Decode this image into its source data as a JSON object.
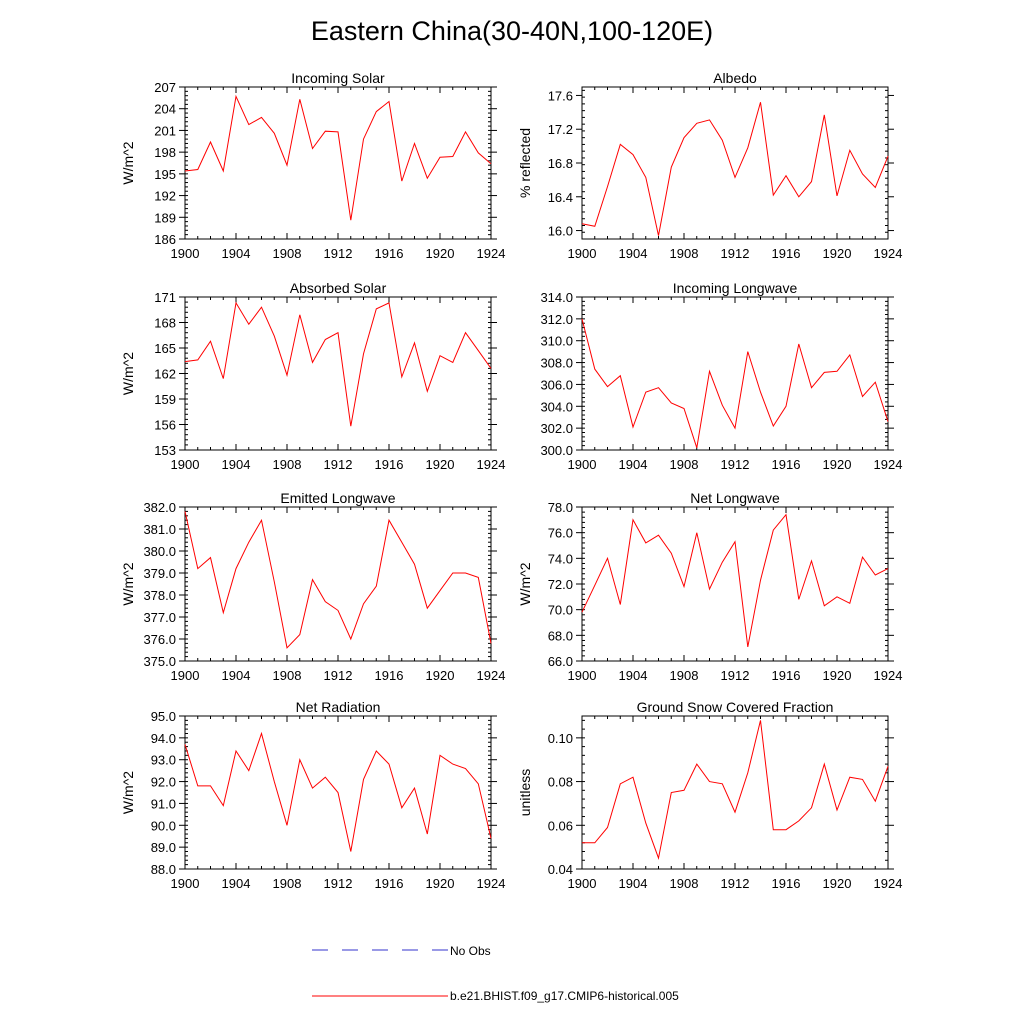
{
  "page_title": "Eastern China(30-40N,100-120E)",
  "chart_data": [
    {
      "type": "line",
      "title": "Incoming Solar",
      "ylabel": "W/m^2",
      "xlabel": "",
      "xlim": [
        1900,
        1924
      ],
      "ylim": [
        186,
        207
      ],
      "xticks": [
        1900,
        1904,
        1908,
        1912,
        1916,
        1920,
        1924
      ],
      "yticks": [
        186,
        189,
        192,
        195,
        198,
        201,
        204,
        207
      ],
      "ytick_labels": [
        "186",
        "189",
        "192",
        "195",
        "198",
        "201",
        "204",
        "207"
      ],
      "color": "#ff0000",
      "x": [
        1900,
        1901,
        1902,
        1903,
        1904,
        1905,
        1906,
        1907,
        1908,
        1909,
        1910,
        1911,
        1912,
        1913,
        1914,
        1915,
        1916,
        1917,
        1918,
        1919,
        1920,
        1921,
        1922,
        1923,
        1924
      ],
      "values": [
        195.4,
        195.6,
        199.4,
        195.4,
        205.7,
        201.8,
        202.8,
        200.6,
        196.2,
        205.3,
        198.5,
        200.9,
        200.8,
        188.6,
        199.8,
        203.6,
        205.0,
        194.0,
        199.2,
        194.4,
        197.3,
        197.4,
        200.8,
        197.9,
        196.4
      ]
    },
    {
      "type": "line",
      "title": "Albedo",
      "ylabel": "% reflected",
      "xlabel": "",
      "xlim": [
        1900,
        1924
      ],
      "ylim": [
        15.9,
        17.7
      ],
      "xticks": [
        1900,
        1904,
        1908,
        1912,
        1916,
        1920,
        1924
      ],
      "yticks": [
        16.0,
        16.4,
        16.8,
        17.2,
        17.6
      ],
      "ytick_labels": [
        "16.0",
        "16.4",
        "16.8",
        "17.2",
        "17.6"
      ],
      "color": "#ff0000",
      "x": [
        1900,
        1901,
        1902,
        1903,
        1904,
        1905,
        1906,
        1907,
        1908,
        1909,
        1910,
        1911,
        1912,
        1913,
        1914,
        1915,
        1916,
        1917,
        1918,
        1919,
        1920,
        1921,
        1922,
        1923,
        1924
      ],
      "values": [
        16.08,
        16.05,
        16.52,
        17.02,
        16.9,
        16.63,
        15.94,
        16.75,
        17.1,
        17.27,
        17.31,
        17.07,
        16.63,
        16.98,
        17.52,
        16.42,
        16.65,
        16.4,
        16.58,
        17.37,
        16.41,
        16.95,
        16.67,
        16.51,
        16.88
      ]
    },
    {
      "type": "line",
      "title": "Absorbed Solar",
      "ylabel": "W/m^2",
      "xlabel": "",
      "xlim": [
        1900,
        1924
      ],
      "ylim": [
        153,
        171
      ],
      "xticks": [
        1900,
        1904,
        1908,
        1912,
        1916,
        1920,
        1924
      ],
      "yticks": [
        153,
        156,
        159,
        162,
        165,
        168,
        171
      ],
      "ytick_labels": [
        "153",
        "156",
        "159",
        "162",
        "165",
        "168",
        "171"
      ],
      "color": "#ff0000",
      "x": [
        1900,
        1901,
        1902,
        1903,
        1904,
        1905,
        1906,
        1907,
        1908,
        1909,
        1910,
        1911,
        1912,
        1913,
        1914,
        1915,
        1916,
        1917,
        1918,
        1919,
        1920,
        1921,
        1922,
        1923,
        1924
      ],
      "values": [
        163.4,
        163.6,
        165.8,
        161.4,
        170.3,
        167.8,
        169.8,
        166.4,
        161.8,
        168.9,
        163.3,
        166.0,
        166.8,
        155.8,
        164.3,
        169.6,
        170.3,
        161.6,
        165.6,
        159.9,
        164.1,
        163.3,
        166.8,
        164.7,
        162.6
      ]
    },
    {
      "type": "line",
      "title": "Incoming Longwave",
      "ylabel": "",
      "xlabel": "",
      "xlim": [
        1900,
        1924
      ],
      "ylim": [
        300,
        314
      ],
      "xticks": [
        1900,
        1904,
        1908,
        1912,
        1916,
        1920,
        1924
      ],
      "yticks": [
        300,
        302,
        304,
        306,
        308,
        310,
        312,
        314
      ],
      "ytick_labels": [
        "300.0",
        "302.0",
        "304.0",
        "306.0",
        "308.0",
        "310.0",
        "312.0",
        "314.0"
      ],
      "color": "#ff0000",
      "x": [
        1900,
        1901,
        1902,
        1903,
        1904,
        1905,
        1906,
        1907,
        1908,
        1909,
        1910,
        1911,
        1912,
        1913,
        1914,
        1915,
        1916,
        1917,
        1918,
        1919,
        1920,
        1921,
        1922,
        1923,
        1924
      ],
      "values": [
        312.0,
        307.4,
        305.8,
        306.8,
        302.1,
        305.3,
        305.7,
        304.3,
        303.8,
        300.2,
        307.2,
        304.1,
        302.0,
        309.0,
        305.3,
        302.2,
        304.0,
        309.7,
        305.7,
        307.1,
        307.2,
        308.7,
        304.9,
        306.2,
        302.6
      ]
    },
    {
      "type": "line",
      "title": "Emitted Longwave",
      "ylabel": "W/m^2",
      "xlabel": "",
      "xlim": [
        1900,
        1924
      ],
      "ylim": [
        375,
        382
      ],
      "xticks": [
        1900,
        1904,
        1908,
        1912,
        1916,
        1920,
        1924
      ],
      "yticks": [
        375,
        376,
        377,
        378,
        379,
        380,
        381,
        382
      ],
      "ytick_labels": [
        "375.0",
        "376.0",
        "377.0",
        "378.0",
        "379.0",
        "380.0",
        "381.0",
        "382.0"
      ],
      "color": "#ff0000",
      "x": [
        1900,
        1901,
        1902,
        1903,
        1904,
        1905,
        1906,
        1907,
        1908,
        1909,
        1910,
        1911,
        1912,
        1913,
        1914,
        1915,
        1916,
        1917,
        1918,
        1919,
        1920,
        1921,
        1922,
        1923,
        1924
      ],
      "values": [
        381.8,
        379.2,
        379.7,
        377.2,
        379.2,
        380.4,
        381.4,
        378.6,
        375.6,
        376.2,
        378.7,
        377.7,
        377.3,
        376.0,
        377.6,
        378.4,
        381.4,
        380.4,
        379.4,
        377.4,
        378.2,
        379.0,
        379.0,
        378.8,
        375.8
      ]
    },
    {
      "type": "line",
      "title": "Net Longwave",
      "ylabel": "W/m^2",
      "xlabel": "",
      "xlim": [
        1900,
        1924
      ],
      "ylim": [
        66,
        78
      ],
      "xticks": [
        1900,
        1904,
        1908,
        1912,
        1916,
        1920,
        1924
      ],
      "yticks": [
        66,
        68,
        70,
        72,
        74,
        76,
        78
      ],
      "ytick_labels": [
        "66.0",
        "68.0",
        "70.0",
        "72.0",
        "74.0",
        "76.0",
        "78.0"
      ],
      "color": "#ff0000",
      "x": [
        1900,
        1901,
        1902,
        1903,
        1904,
        1905,
        1906,
        1907,
        1908,
        1909,
        1910,
        1911,
        1912,
        1913,
        1914,
        1915,
        1916,
        1917,
        1918,
        1919,
        1920,
        1921,
        1922,
        1923,
        1924
      ],
      "values": [
        69.8,
        71.9,
        74.0,
        70.4,
        77.0,
        75.2,
        75.8,
        74.4,
        71.8,
        76.0,
        71.6,
        73.7,
        75.3,
        67.1,
        72.3,
        76.2,
        77.4,
        70.8,
        73.8,
        70.3,
        71.0,
        70.5,
        74.1,
        72.7,
        73.2
      ]
    },
    {
      "type": "line",
      "title": "Net Radiation",
      "ylabel": "W/m^2",
      "xlabel": "",
      "xlim": [
        1900,
        1924
      ],
      "ylim": [
        88,
        95
      ],
      "xticks": [
        1900,
        1904,
        1908,
        1912,
        1916,
        1920,
        1924
      ],
      "yticks": [
        88,
        89,
        90,
        91,
        92,
        93,
        94,
        95
      ],
      "ytick_labels": [
        "88.0",
        "89.0",
        "90.0",
        "91.0",
        "92.0",
        "93.0",
        "94.0",
        "95.0"
      ],
      "color": "#ff0000",
      "x": [
        1900,
        1901,
        1902,
        1903,
        1904,
        1905,
        1906,
        1907,
        1908,
        1909,
        1910,
        1911,
        1912,
        1913,
        1914,
        1915,
        1916,
        1917,
        1918,
        1919,
        1920,
        1921,
        1922,
        1923,
        1924
      ],
      "values": [
        93.7,
        91.8,
        91.8,
        90.9,
        93.4,
        92.5,
        94.2,
        92.0,
        90.0,
        93.0,
        91.7,
        92.2,
        91.5,
        88.8,
        92.1,
        93.4,
        92.8,
        90.8,
        91.7,
        89.6,
        93.2,
        92.8,
        92.6,
        91.9,
        89.4
      ]
    },
    {
      "type": "line",
      "title": "Ground Snow Covered Fraction",
      "ylabel": "unitless",
      "xlabel": "",
      "xlim": [
        1900,
        1924
      ],
      "ylim": [
        0.04,
        0.11
      ],
      "xticks": [
        1900,
        1904,
        1908,
        1912,
        1916,
        1920,
        1924
      ],
      "yticks": [
        0.04,
        0.06,
        0.08,
        0.1
      ],
      "ytick_labels": [
        "0.04",
        "0.06",
        "0.08",
        "0.10"
      ],
      "color": "#ff0000",
      "x": [
        1900,
        1901,
        1902,
        1903,
        1904,
        1905,
        1906,
        1907,
        1908,
        1909,
        1910,
        1911,
        1912,
        1913,
        1914,
        1915,
        1916,
        1917,
        1918,
        1919,
        1920,
        1921,
        1922,
        1923,
        1924
      ],
      "values": [
        0.052,
        0.052,
        0.059,
        0.079,
        0.082,
        0.061,
        0.045,
        0.075,
        0.076,
        0.088,
        0.08,
        0.079,
        0.066,
        0.084,
        0.108,
        0.058,
        0.058,
        0.062,
        0.068,
        0.088,
        0.067,
        0.082,
        0.081,
        0.071,
        0.087
      ]
    }
  ],
  "legend": {
    "obs_label": "No Obs",
    "obs_color": "#3333cc",
    "model_label": "b.e21.BHIST.f09_g17.CMIP6-historical.005",
    "model_color": "#ff0000"
  }
}
